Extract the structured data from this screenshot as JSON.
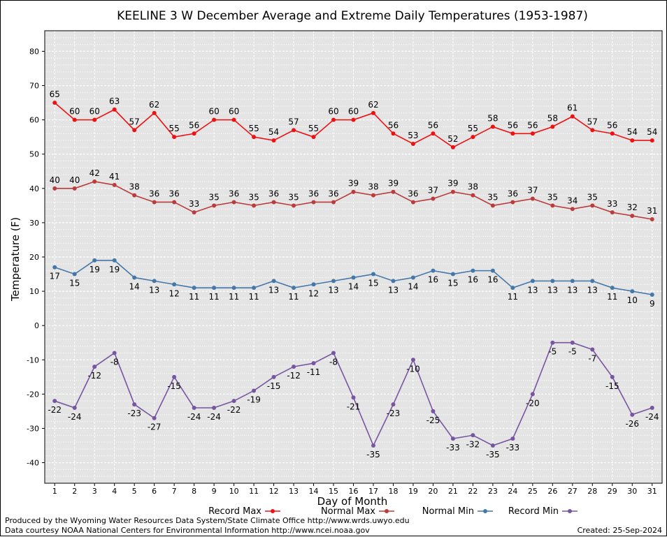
{
  "chart_data": {
    "type": "line",
    "title": "KEELINE 3 W December Average and Extreme Daily Temperatures (1953-1987)",
    "xlabel": "Day of Month",
    "ylabel": "Temperature (F)",
    "ylim": [
      -46,
      86
    ],
    "yticks": [
      -40,
      -30,
      -20,
      -10,
      0,
      10,
      20,
      30,
      40,
      50,
      60,
      70,
      80
    ],
    "grid": true,
    "legend_position": "bottom",
    "x": [
      1,
      2,
      3,
      4,
      5,
      6,
      7,
      8,
      9,
      10,
      11,
      12,
      13,
      14,
      15,
      16,
      17,
      18,
      19,
      20,
      21,
      22,
      23,
      24,
      25,
      26,
      27,
      28,
      29,
      30,
      31
    ],
    "series": [
      {
        "name": "Record Max",
        "color": "#ee1111",
        "label_pos": "above",
        "values": [
          65,
          60,
          60,
          63,
          57,
          62,
          55,
          56,
          60,
          60,
          55,
          54,
          57,
          55,
          60,
          60,
          62,
          56,
          53,
          56,
          52,
          55,
          58,
          56,
          56,
          58,
          61,
          57,
          56,
          54,
          54
        ]
      },
      {
        "name": "Normal Max",
        "color": "#bb3c3c",
        "label_pos": "above",
        "values": [
          40,
          40,
          42,
          41,
          38,
          36,
          36,
          33,
          35,
          36,
          35,
          36,
          35,
          36,
          36,
          39,
          38,
          39,
          36,
          37,
          39,
          38,
          35,
          36,
          37,
          35,
          34,
          35,
          33,
          32,
          31
        ]
      },
      {
        "name": "Normal Min",
        "color": "#4477aa",
        "label_pos": "below",
        "values": [
          17,
          15,
          19,
          19,
          14,
          13,
          12,
          11,
          11,
          11,
          11,
          13,
          11,
          12,
          13,
          14,
          15,
          13,
          14,
          16,
          15,
          16,
          16,
          11,
          13,
          13,
          13,
          13,
          11,
          10,
          9
        ]
      },
      {
        "name": "Record Min",
        "color": "#7755a0",
        "label_pos": "below",
        "values": [
          -22,
          -24,
          -12,
          -8,
          -23,
          -27,
          -15,
          -24,
          -24,
          -22,
          -19,
          -15,
          -12,
          -11,
          -8,
          -21,
          -35,
          -23,
          -10,
          -25,
          -33,
          -32,
          -35,
          -33,
          -20,
          -5,
          -5,
          -7,
          -15,
          -26,
          -24
        ]
      }
    ]
  },
  "footer": {
    "produced_by": "Produced by the Wyoming Water Resources Data System/State Climate Office http://www.wrds.uwyo.edu",
    "courtesy": "Data courtesy NOAA National Centers for Environmental Information http://www.ncei.noaa.gov",
    "created": "Created:  25-Sep-2024"
  }
}
